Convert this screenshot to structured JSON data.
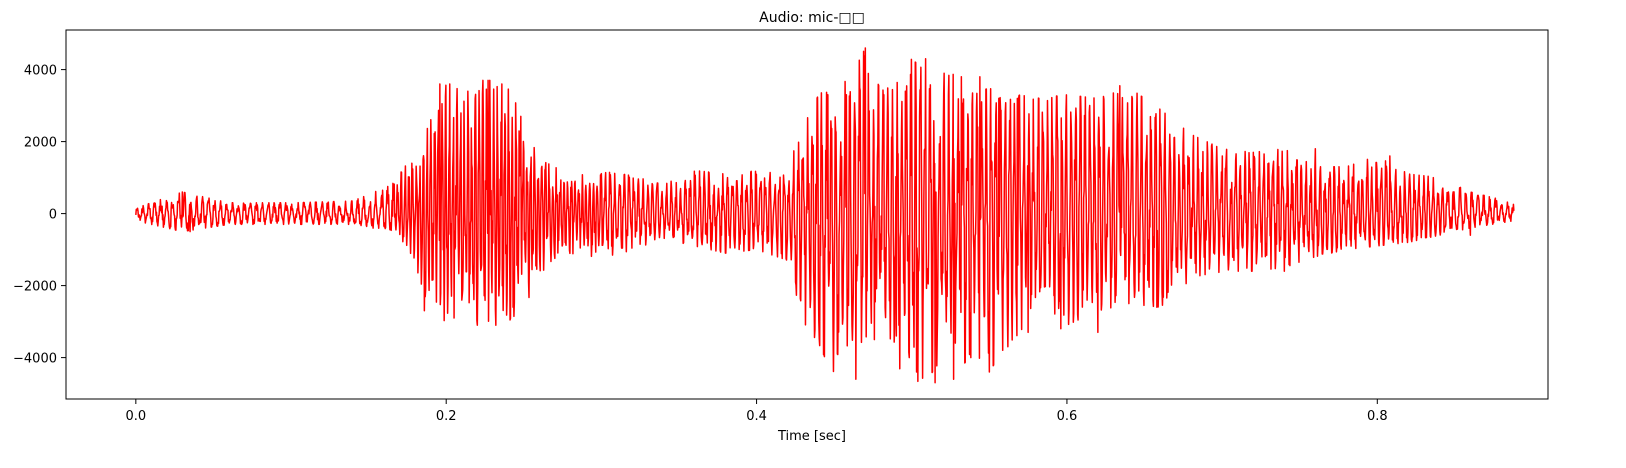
{
  "chart_data": {
    "type": "line",
    "title": "Audio: mic-□□",
    "xlabel": "Time [sec]",
    "ylabel": "",
    "xlim": [
      -0.045,
      0.91
    ],
    "ylim": [
      -5150,
      5100
    ],
    "xticks": [
      0.0,
      0.2,
      0.4,
      0.6,
      0.8
    ],
    "xtick_labels": [
      "0.0",
      "0.2",
      "0.4",
      "0.6",
      "0.8"
    ],
    "yticks": [
      -4000,
      -2000,
      0,
      2000,
      4000
    ],
    "ytick_labels": [
      "−4000",
      "−2000",
      "0",
      "2000",
      "4000"
    ],
    "grid": false,
    "legend": "none",
    "line_color": "#ff0000",
    "duration_sec": 0.888,
    "envelope": {
      "x": [
        0.0,
        0.03,
        0.06,
        0.1,
        0.14,
        0.165,
        0.175,
        0.18,
        0.19,
        0.2,
        0.21,
        0.22,
        0.23,
        0.24,
        0.25,
        0.26,
        0.27,
        0.28,
        0.3,
        0.32,
        0.34,
        0.36,
        0.38,
        0.4,
        0.42,
        0.43,
        0.44,
        0.45,
        0.46,
        0.47,
        0.48,
        0.49,
        0.5,
        0.51,
        0.52,
        0.53,
        0.54,
        0.55,
        0.56,
        0.57,
        0.58,
        0.6,
        0.62,
        0.64,
        0.66,
        0.68,
        0.7,
        0.72,
        0.74,
        0.76,
        0.78,
        0.8,
        0.82,
        0.84,
        0.86,
        0.888
      ],
      "upper": [
        150,
        600,
        300,
        300,
        350,
        800,
        1400,
        1500,
        2600,
        3600,
        3600,
        3700,
        3700,
        3600,
        2500,
        1500,
        1300,
        1000,
        1200,
        1050,
        800,
        1200,
        1100,
        1200,
        1300,
        2400,
        3300,
        3600,
        3700,
        4600,
        3400,
        3600,
        4300,
        3900,
        3800,
        3900,
        3300,
        3500,
        3100,
        3300,
        3200,
        3300,
        3200,
        3500,
        2900,
        2200,
        1800,
        1700,
        1800,
        1300,
        1300,
        1600,
        1100,
        1000,
        600,
        300
      ],
      "lower": [
        -200,
        -500,
        -300,
        -300,
        -300,
        -500,
        -900,
        -1400,
        -2800,
        -3000,
        -2800,
        -3100,
        -3100,
        -3000,
        -2600,
        -1800,
        -1300,
        -1100,
        -1300,
        -1000,
        -700,
        -900,
        -1100,
        -1000,
        -1300,
        -3000,
        -3600,
        -4600,
        -3500,
        -3600,
        -2200,
        -4400,
        -4700,
        -4600,
        -4000,
        -4400,
        -3800,
        -4400,
        -3700,
        -3300,
        -2300,
        -3100,
        -2700,
        -2500,
        -2600,
        -1900,
        -1600,
        -1600,
        -1500,
        -1200,
        -1000,
        -900,
        -800,
        -600,
        -400,
        -200
      ]
    },
    "peaks": [
      {
        "x": 0.03,
        "y": 600
      },
      {
        "x": 0.035,
        "y": -500
      },
      {
        "x": 0.178,
        "y": 1400
      },
      {
        "x": 0.186,
        "y": -2700
      },
      {
        "x": 0.196,
        "y": 3600
      },
      {
        "x": 0.205,
        "y": -2900
      },
      {
        "x": 0.214,
        "y": 3400
      },
      {
        "x": 0.22,
        "y": -3100
      },
      {
        "x": 0.227,
        "y": 3700
      },
      {
        "x": 0.232,
        "y": -3100
      },
      {
        "x": 0.236,
        "y": 3600
      },
      {
        "x": 0.243,
        "y": -2600
      },
      {
        "x": 0.248,
        "y": 2700
      },
      {
        "x": 0.44,
        "y": -3000
      },
      {
        "x": 0.446,
        "y": 3300
      },
      {
        "x": 0.452,
        "y": -3900
      },
      {
        "x": 0.458,
        "y": 3300
      },
      {
        "x": 0.464,
        "y": -4600
      },
      {
        "x": 0.47,
        "y": 4600
      },
      {
        "x": 0.476,
        "y": -3500
      },
      {
        "x": 0.482,
        "y": 3300
      },
      {
        "x": 0.49,
        "y": -3400
      },
      {
        "x": 0.496,
        "y": 3400
      },
      {
        "x": 0.503,
        "y": -4400
      },
      {
        "x": 0.509,
        "y": 4300
      },
      {
        "x": 0.515,
        "y": -4700
      },
      {
        "x": 0.521,
        "y": 3900
      },
      {
        "x": 0.527,
        "y": -4600
      },
      {
        "x": 0.532,
        "y": 3800
      },
      {
        "x": 0.538,
        "y": -4000
      },
      {
        "x": 0.544,
        "y": 3800
      },
      {
        "x": 0.55,
        "y": -4400
      },
      {
        "x": 0.556,
        "y": 3200
      },
      {
        "x": 0.562,
        "y": -3700
      },
      {
        "x": 0.568,
        "y": 3200
      },
      {
        "x": 0.575,
        "y": -3300
      },
      {
        "x": 0.582,
        "y": 3200
      },
      {
        "x": 0.596,
        "y": -3200
      },
      {
        "x": 0.62,
        "y": -3300
      },
      {
        "x": 0.634,
        "y": 3550
      },
      {
        "x": 0.64,
        "y": -2500
      },
      {
        "x": 0.658,
        "y": -2600
      },
      {
        "x": 0.7,
        "y": 1600
      },
      {
        "x": 0.72,
        "y": 1700
      },
      {
        "x": 0.74,
        "y": -1600
      },
      {
        "x": 0.76,
        "y": 1800
      },
      {
        "x": 0.808,
        "y": 1600
      },
      {
        "x": 0.86,
        "y": -600
      }
    ]
  }
}
